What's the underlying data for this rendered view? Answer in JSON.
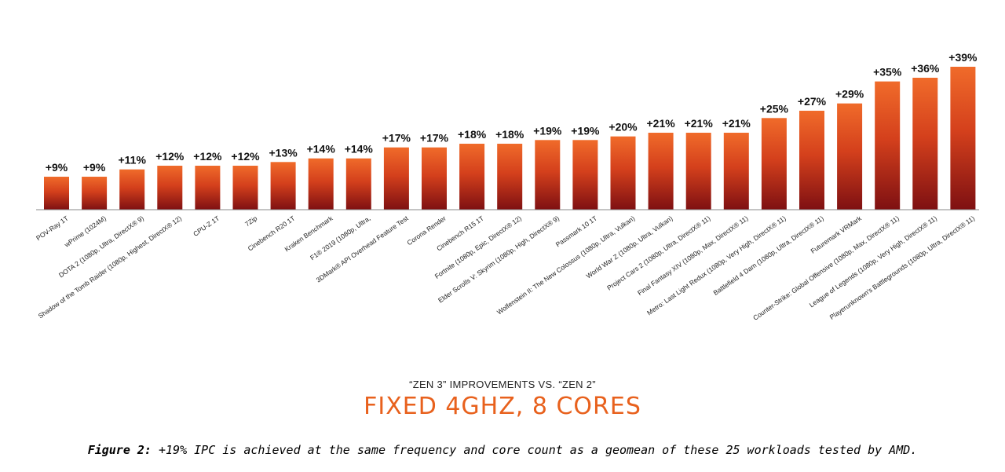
{
  "chart_data": {
    "type": "bar",
    "categories": [
      "POV-Ray 1T",
      "wPrime (1024M)",
      "DOTA 2 (1080p, Ultra, DirectX® 9)",
      "Shadow of the Tomb Raider (1080p, Highest, DirectX® 12)",
      "CPU-Z 1T",
      "7Zip",
      "Cinebench R20 1T",
      "Kraken Benchmark",
      "F1® 2019 (1080p, Ultra,",
      "3DMark® API Overhead Feature Test",
      "Corona Render",
      "Cinebench R15 1T",
      "Fortnite (1080p, Epic, DirectX® 12)",
      "Elder Scrolls V: Skyrim (1080p, High, DirectX® 9)",
      "Passmark 10 1T",
      "Wolfenstein II: The New Colossus (1080p, Ultra, Vulkan)",
      "World War Z (1080p, Ultra, Vulkan)",
      "Project Cars 2 (1080p, Ultra, DirectX® 11)",
      "Final Fantasy XIV (1080p, Max, DirectX® 11)",
      "Metro: Last Light Redux (1080p, Very High, DirectX® 11)",
      "Battlefield 4 Dam (1080p, Ultra, DirectX® 11)",
      "Futuremark VRMark",
      "Counter-Strike: Global Offensive (1080p, Max, DirectX® 11)",
      "League of Legends (1080p, Very High, DirectX® 11)",
      "Playerunknown's Battlegrounds (1080p, Ultra, DirectX® 11)"
    ],
    "values": [
      9,
      9,
      11,
      12,
      12,
      12,
      13,
      14,
      14,
      17,
      17,
      18,
      18,
      19,
      19,
      20,
      21,
      21,
      21,
      25,
      27,
      29,
      35,
      36,
      39
    ],
    "value_labels": [
      "+9%",
      "+9%",
      "+11%",
      "+12%",
      "+12%",
      "+12%",
      "+13%",
      "+14%",
      "+14%",
      "+17%",
      "+17%",
      "+18%",
      "+18%",
      "+19%",
      "+19%",
      "+20%",
      "+21%",
      "+21%",
      "+21%",
      "+25%",
      "+27%",
      "+29%",
      "+35%",
      "+36%",
      "+39%"
    ],
    "ylim": [
      0,
      39
    ],
    "grid": false,
    "legend": "none",
    "bar_color_top": "#f06b2a",
    "bar_color_bottom": "#7e1012",
    "axis_color": "#888888"
  },
  "subtitle": "“ZEN 3” IMPROVEMENTS VS. “ZEN 2”",
  "title": "FIXED 4GHZ, 8 CORES",
  "caption": {
    "label": "Figure 2:",
    "text": " +19% IPC is achieved at the same frequency and core count as a geomean of these 25 workloads tested by AMD."
  },
  "colors": {
    "title": "#e8611d"
  }
}
